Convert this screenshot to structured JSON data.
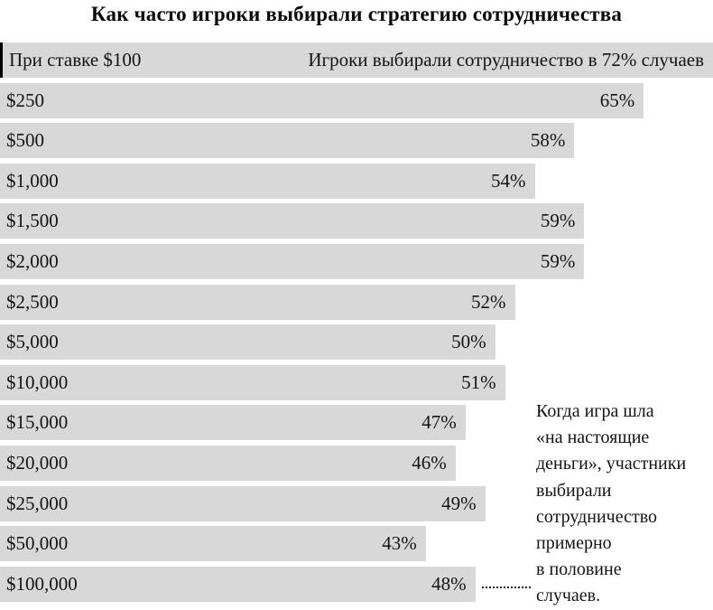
{
  "chart_data": {
    "type": "bar",
    "orientation": "horizontal",
    "title": "Как часто игроки выбирали стратегию сотрудничества",
    "unit": "%",
    "scale_max": 72,
    "grid": false,
    "legend": false,
    "categories": [
      "При ставке $100",
      "$250",
      "$500",
      "$1,000",
      "$1,500",
      "$2,000",
      "$2,500",
      "$5,000",
      "$10,000",
      "$15,000",
      "$20,000",
      "$25,000",
      "$50,000",
      "$100,000"
    ],
    "values": [
      72,
      65,
      58,
      54,
      59,
      59,
      52,
      50,
      51,
      47,
      46,
      49,
      43,
      48
    ],
    "rows": [
      {
        "stake": "При ставке $100",
        "value": 72,
        "value_label": "Игроки выбирали сотрудничество в 72% случаев"
      },
      {
        "stake": "$250",
        "value": 65,
        "value_label": "65%"
      },
      {
        "stake": "$500",
        "value": 58,
        "value_label": "58%"
      },
      {
        "stake": "$1,000",
        "value": 54,
        "value_label": "54%"
      },
      {
        "stake": "$1,500",
        "value": 59,
        "value_label": "59%"
      },
      {
        "stake": "$2,000",
        "value": 59,
        "value_label": "59%"
      },
      {
        "stake": "$2,500",
        "value": 52,
        "value_label": "52%"
      },
      {
        "stake": "$5,000",
        "value": 50,
        "value_label": "50%"
      },
      {
        "stake": "$10,000",
        "value": 51,
        "value_label": "51%"
      },
      {
        "stake": "$15,000",
        "value": 47,
        "value_label": "47%"
      },
      {
        "stake": "$20,000",
        "value": 46,
        "value_label": "46%"
      },
      {
        "stake": "$25,000",
        "value": 49,
        "value_label": "49%"
      },
      {
        "stake": "$50,000",
        "value": 43,
        "value_label": "43%"
      },
      {
        "stake": "$100,000",
        "value": 48,
        "value_label": "48%"
      }
    ],
    "annotation": {
      "text": "Когда игра шла «на настоящие деньги», участники выбирали сотрудничество примерно в половине случаев.",
      "lines": [
        "Когда игра шла",
        "«на настоящие",
        "деньги», участники",
        "выбирали",
        "сотрудничество",
        "примерно",
        "в половине",
        "случаев."
      ]
    },
    "colors": {
      "bar": "#d8d8d8",
      "text": "#141414",
      "background": "#ffffff",
      "first_bar_border": "#000000"
    }
  }
}
